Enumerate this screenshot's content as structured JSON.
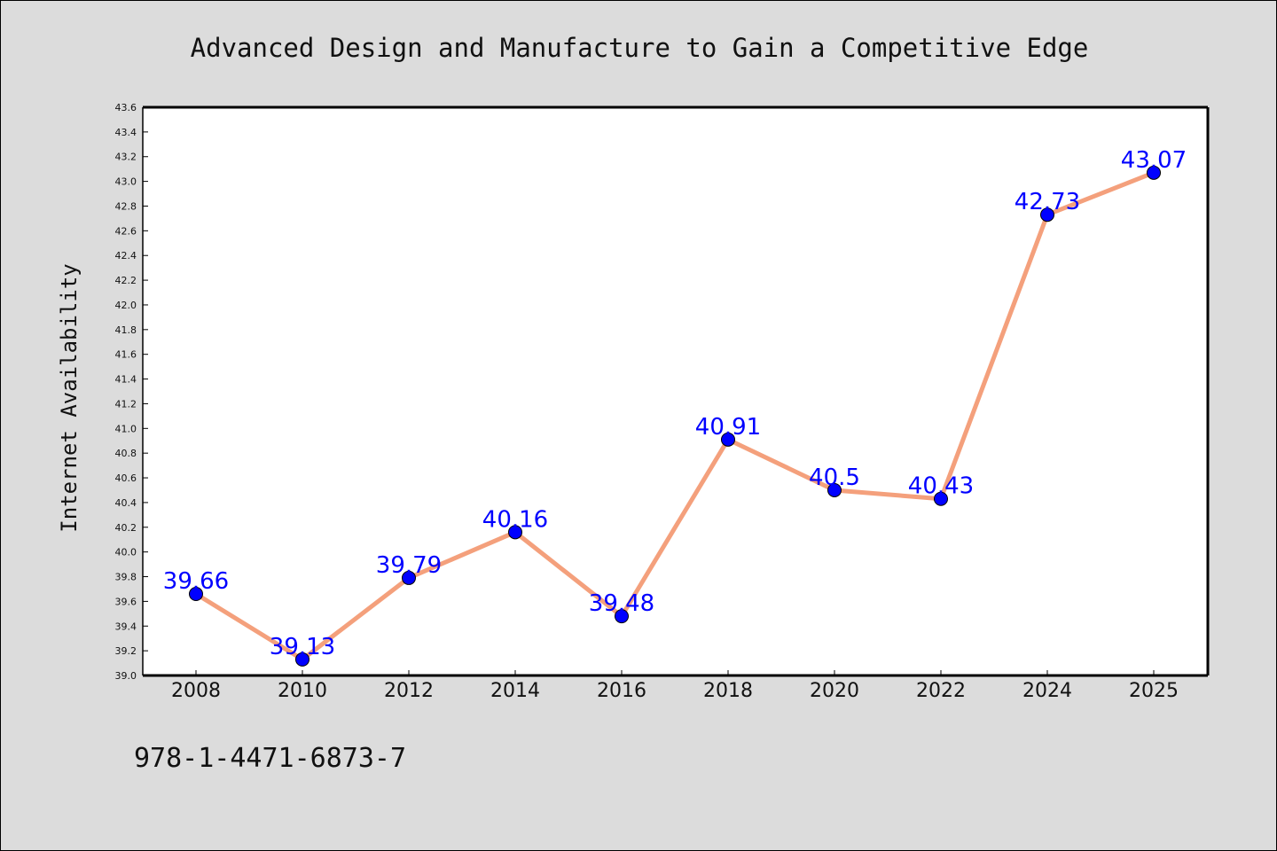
{
  "chart_data": {
    "type": "line",
    "title": "Advanced Design and Manufacture to Gain a Competitive Edge",
    "xlabel": "",
    "ylabel": "Internet Availability",
    "categories": [
      "2008",
      "2010",
      "2012",
      "2014",
      "2016",
      "2018",
      "2020",
      "2022",
      "2024",
      "2025"
    ],
    "series": [
      {
        "values": [
          39.66,
          39.13,
          39.79,
          40.16,
          39.48,
          40.91,
          40.5,
          40.43,
          42.73,
          43.07
        ],
        "labels": [
          "39.66",
          "39.13",
          "39.79",
          "40.16",
          "39.48",
          "40.91",
          "40.5",
          "40.43",
          "42.73",
          "43.07"
        ]
      }
    ],
    "ylim": [
      39.0,
      43.6
    ],
    "yticks": [
      "39.0",
      "39.2",
      "39.4",
      "39.6",
      "39.8",
      "40.0",
      "40.2",
      "40.4",
      "40.6",
      "40.8",
      "41.0",
      "41.2",
      "41.4",
      "41.6",
      "41.8",
      "42.0",
      "42.2",
      "42.4",
      "42.6",
      "42.8",
      "43.0",
      "43.2",
      "43.4",
      "43.6"
    ],
    "grid": false,
    "line_color": "#f4a07c",
    "marker_color": "#0000ff",
    "label_color": "#0000ff"
  },
  "footer": {
    "isbn": "978-1-4471-6873-7"
  }
}
